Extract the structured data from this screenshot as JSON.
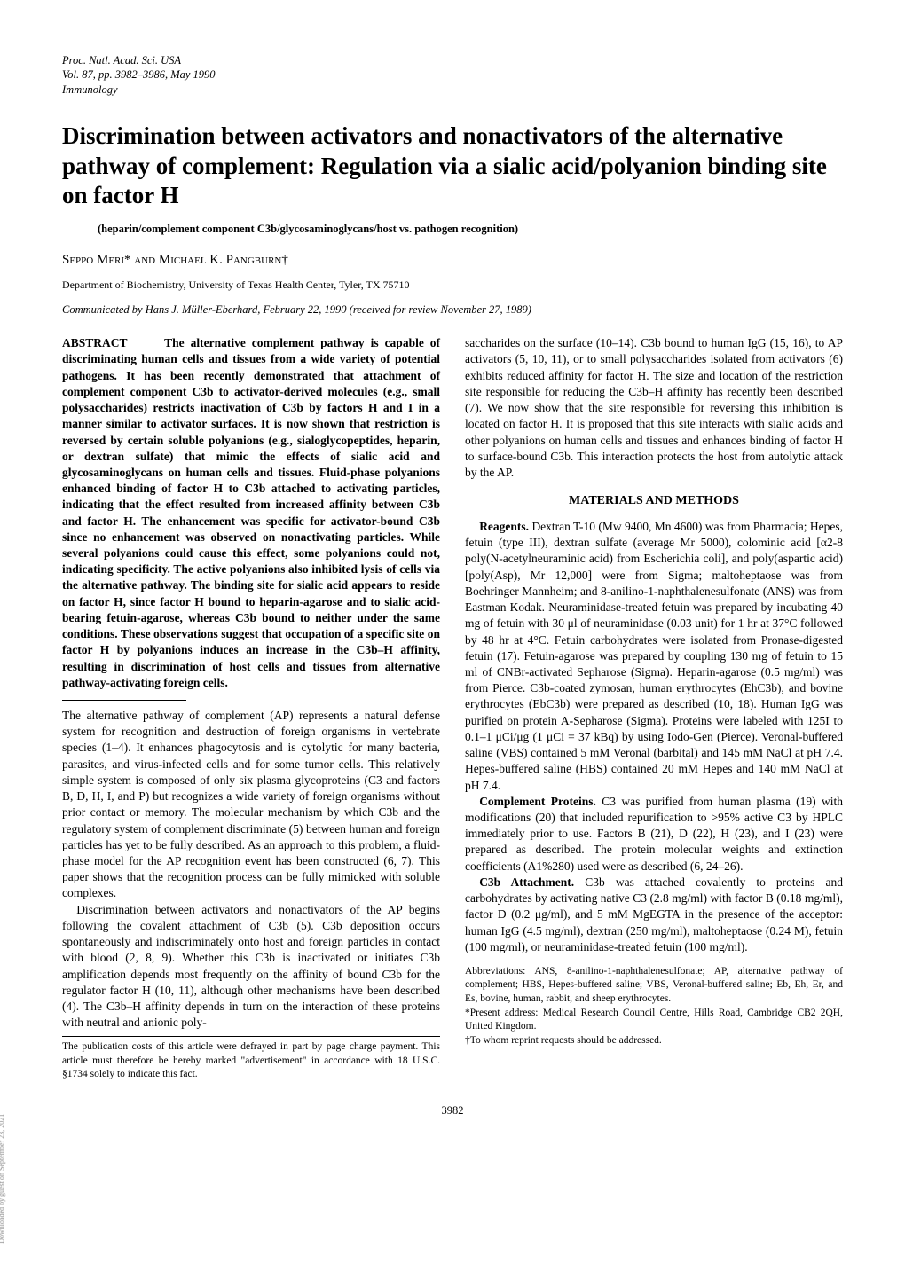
{
  "journal": {
    "line1": "Proc. Natl. Acad. Sci. USA",
    "line2": "Vol. 87, pp. 3982–3986, May 1990",
    "line3": "Immunology"
  },
  "title": "Discrimination between activators and nonactivators of the alternative pathway of complement: Regulation via a sialic acid/polyanion binding site on factor H",
  "keywords": "(heparin/complement component C3b/glycosaminoglycans/host vs. pathogen recognition)",
  "authors": "Seppo Meri* and Michael K. Pangburn†",
  "affiliation": "Department of Biochemistry, University of Texas Health Center, Tyler, TX 75710",
  "communicated": "Communicated by Hans J. Müller-Eberhard, February 22, 1990 (received for review November 27, 1989)",
  "abstract_label": "ABSTRACT",
  "abstract": "The alternative complement pathway is capable of discriminating human cells and tissues from a wide variety of potential pathogens. It has been recently demonstrated that attachment of complement component C3b to activator-derived molecules (e.g., small polysaccharides) restricts inactivation of C3b by factors H and I in a manner similar to activator surfaces. It is now shown that restriction is reversed by certain soluble polyanions (e.g., sialoglycopeptides, heparin, or dextran sulfate) that mimic the effects of sialic acid and glycosaminoglycans on human cells and tissues. Fluid-phase polyanions enhanced binding of factor H to C3b attached to activating particles, indicating that the effect resulted from increased affinity between C3b and factor H. The enhancement was specific for activator-bound C3b since no enhancement was observed on nonactivating particles. While several polyanions could cause this effect, some polyanions could not, indicating specificity. The active polyanions also inhibited lysis of cells via the alternative pathway. The binding site for sialic acid appears to reside on factor H, since factor H bound to heparin-agarose and to sialic acid-bearing fetuin-agarose, whereas C3b bound to neither under the same conditions. These observations suggest that occupation of a specific site on factor H by polyanions induces an increase in the C3b–H affinity, resulting in discrimination of host cells and tissues from alternative pathway-activating foreign cells.",
  "intro_p1": "The alternative pathway of complement (AP) represents a natural defense system for recognition and destruction of foreign organisms in vertebrate species (1–4). It enhances phagocytosis and is cytolytic for many bacteria, parasites, and virus-infected cells and for some tumor cells. This relatively simple system is composed of only six plasma glycoproteins (C3 and factors B, D, H, I, and P) but recognizes a wide variety of foreign organisms without prior contact or memory. The molecular mechanism by which C3b and the regulatory system of complement discriminate (5) between human and foreign particles has yet to be fully described. As an approach to this problem, a fluid-phase model for the AP recognition event has been constructed (6, 7). This paper shows that the recognition process can be fully mimicked with soluble complexes.",
  "intro_p2": "Discrimination between activators and nonactivators of the AP begins following the covalent attachment of C3b (5). C3b deposition occurs spontaneously and indiscriminately onto host and foreign particles in contact with blood (2, 8, 9). Whether this C3b is inactivated or initiates C3b amplification depends most frequently on the affinity of bound C3b for the regulator factor H (10, 11), although other mechanisms have been described (4). The C3b–H affinity depends in turn on the interaction of these proteins with neutral and anionic poly-",
  "col2_p1": "saccharides on the surface (10–14). C3b bound to human IgG (15, 16), to AP activators (5, 10, 11), or to small polysaccharides isolated from activators (6) exhibits reduced affinity for factor H. The size and location of the restriction site responsible for reducing the C3b–H affinity has recently been described (7). We now show that the site responsible for reversing this inhibition is located on factor H. It is proposed that this site interacts with sialic acids and other polyanions on human cells and tissues and enhances binding of factor H to surface-bound C3b. This interaction protects the host from autolytic attack by the AP.",
  "materials_heading": "MATERIALS AND METHODS",
  "reagents_label": "Reagents.",
  "reagents_body": "Dextran T-10 (Mw 9400, Mn 4600) was from Pharmacia; Hepes, fetuin (type III), dextran sulfate (average Mr 5000), colominic acid [α2-8 poly(N-acetylneuraminic acid) from Escherichia coli], and poly(aspartic acid) [poly(Asp), Mr 12,000] were from Sigma; maltoheptaose was from Boehringer Mannheim; and 8-anilino-1-naphthalenesulfonate (ANS) was from Eastman Kodak. Neuraminidase-treated fetuin was prepared by incubating 40 mg of fetuin with 30 μl of neuraminidase (0.03 unit) for 1 hr at 37°C followed by 48 hr at 4°C. Fetuin carbohydrates were isolated from Pronase-digested fetuin (17). Fetuin-agarose was prepared by coupling 130 mg of fetuin to 15 ml of CNBr-activated Sepharose (Sigma). Heparin-agarose (0.5 mg/ml) was from Pierce. C3b-coated zymosan, human erythrocytes (EhC3b), and bovine erythrocytes (EbC3b) were prepared as described (10, 18). Human IgG was purified on protein A-Sepharose (Sigma). Proteins were labeled with 125I to 0.1–1 μCi/μg (1 μCi = 37 kBq) by using Iodo-Gen (Pierce). Veronal-buffered saline (VBS) contained 5 mM Veronal (barbital) and 145 mM NaCl at pH 7.4. Hepes-buffered saline (HBS) contained 20 mM Hepes and 140 mM NaCl at pH 7.4.",
  "complement_label": "Complement Proteins.",
  "complement_body": "C3 was purified from human plasma (19) with modifications (20) that included repurification to >95% active C3 by HPLC immediately prior to use. Factors B (21), D (22), H (23), and I (23) were prepared as described. The protein molecular weights and extinction coefficients (A1%280) used were as described (6, 24–26).",
  "attachment_label": "C3b Attachment.",
  "attachment_body": "C3b was attached covalently to proteins and carbohydrates by activating native C3 (2.8 mg/ml) with factor B (0.18 mg/ml), factor D (0.2 μg/ml), and 5 mM MgEGTA in the presence of the acceptor: human IgG (4.5 mg/ml), dextran (250 mg/ml), maltoheptaose (0.24 M), fetuin (100 mg/ml), or neuraminidase-treated fetuin (100 mg/ml).",
  "footnote_left": "The publication costs of this article were defrayed in part by page charge payment. This article must therefore be hereby marked \"advertisement\" in accordance with 18 U.S.C. §1734 solely to indicate this fact.",
  "abbreviations": "Abbreviations: ANS, 8-anilino-1-naphthalenesulfonate; AP, alternative pathway of complement; HBS, Hepes-buffered saline; VBS, Veronal-buffered saline; Eb, Eh, Er, and Es, bovine, human, rabbit, and sheep erythrocytes.",
  "footnote_star": "*Present address: Medical Research Council Centre, Hills Road, Cambridge CB2 2QH, United Kingdom.",
  "footnote_dagger": "†To whom reprint requests should be addressed.",
  "page_number": "3982",
  "side_text": "Downloaded by guest on September 23, 2021"
}
